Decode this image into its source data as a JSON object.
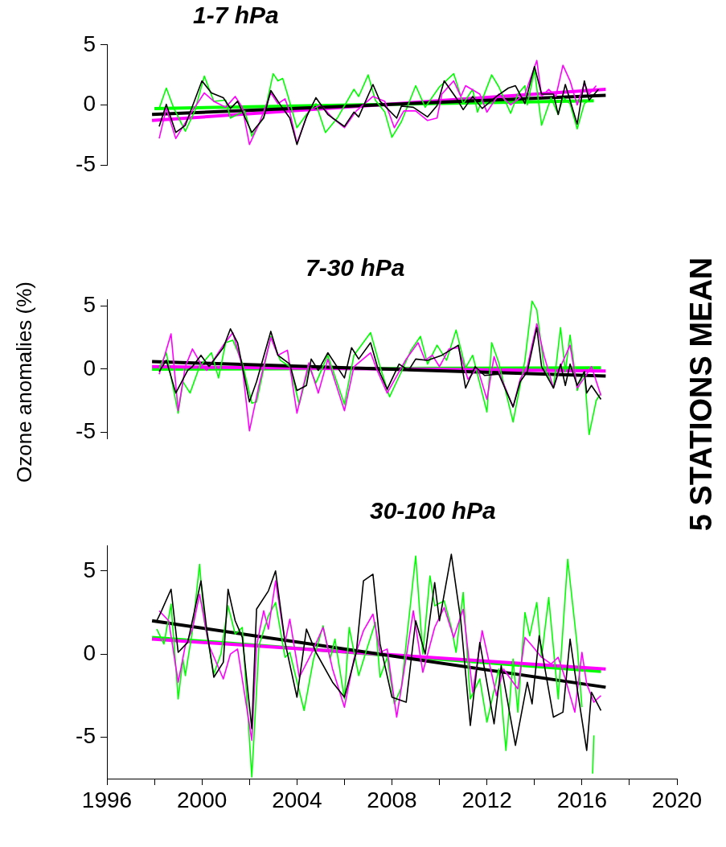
{
  "chart_data": [
    {
      "type": "line",
      "title": "1-7 hPa",
      "xlim": [
        1996,
        2020
      ],
      "ylim": [
        -5,
        5
      ],
      "yticks": [
        -5,
        0,
        5
      ],
      "tick_labels": "y",
      "grid": false,
      "legend": false,
      "marker": "none",
      "line_style": "solid",
      "series": [
        {
          "color": "#000000",
          "x": [
            1998.2,
            1998.5,
            1998.9,
            1999.3,
            2000.0,
            2000.4,
            2000.9,
            2001.2,
            2001.5,
            2002.1,
            2002.6,
            2002.9,
            2003.3,
            2003.7,
            2004.0,
            2004.4,
            2004.8,
            2005.3,
            2006.0,
            2006.4,
            2006.6,
            2007.2,
            2007.5,
            2008.2,
            2008.4,
            2008.9,
            2009.5,
            2009.9,
            2010.2,
            2010.7,
            2011.0,
            2011.4,
            2011.8,
            2012.4,
            2012.9,
            2013.2,
            2013.6,
            2014.0,
            2014.3,
            2014.8,
            2015.0,
            2015.3,
            2015.8,
            2016.1,
            2016.3,
            2016.7
          ],
          "values": [
            -1.8,
            0.05,
            -2.3,
            -1.7,
            2.0,
            1.0,
            0.6,
            -0.3,
            0.3,
            -2.3,
            -1.1,
            1.2,
            0,
            -1.1,
            -3.3,
            -1.0,
            0.6,
            -0.8,
            -1.8,
            -0.6,
            -1.0,
            1.7,
            0.3,
            -1.1,
            -0.1,
            -0.2,
            -1.0,
            -0.05,
            2.0,
            0.6,
            -0.4,
            0.7,
            -0.3,
            0.7,
            1.4,
            1.6,
            0.1,
            3.2,
            0.9,
            0.9,
            -0.8,
            1.7,
            -1.6,
            2.0,
            0.4,
            1.3
          ]
        },
        {
          "color": "#ff00ff",
          "x": [
            1998.2,
            1998.5,
            1998.9,
            1999.6,
            2000.1,
            2000.5,
            2001.0,
            2001.4,
            2001.7,
            2002.0,
            2002.4,
            2002.9,
            2003.2,
            2003.5,
            2003.7,
            2004.0,
            2004.5,
            2005.0,
            2005.5,
            2006.0,
            2006.5,
            2007.2,
            2007.7,
            2008.1,
            2008.5,
            2009.0,
            2009.5,
            2009.9,
            2010.1,
            2010.6,
            2010.9,
            2011.1,
            2011.7,
            2012.0,
            2012.5,
            2013.0,
            2013.6,
            2014.1,
            2014.3,
            2014.6,
            2014.9,
            2015.2,
            2015.5,
            2015.8,
            2016.1,
            2016.3,
            2016.6
          ],
          "values": [
            -2.8,
            -0.3,
            -2.8,
            -0.5,
            1.0,
            0.3,
            -0.2,
            0.7,
            -0.2,
            -3.3,
            -1.6,
            1.0,
            0.1,
            0.5,
            -0.6,
            -3.2,
            -0.5,
            0,
            -1.1,
            -1.9,
            -0.5,
            0.7,
            0.3,
            -1.9,
            -0.5,
            -0.5,
            -1.3,
            -1.1,
            0.9,
            2.0,
            0.7,
            1.6,
            0.9,
            -0.6,
            0.9,
            0,
            0.9,
            3.7,
            0.7,
            1.3,
            0.7,
            3.3,
            2.0,
            0,
            1.8,
            0.9,
            1.6
          ]
        },
        {
          "color": "#00ff00",
          "x": [
            1998.2,
            1998.5,
            1998.8,
            1999.3,
            1999.7,
            2000.1,
            2000.5,
            2001.0,
            2001.2,
            2001.8,
            2002.1,
            2002.6,
            2003.0,
            2003.2,
            2003.4,
            2003.6,
            2004.0,
            2004.4,
            2004.8,
            2005.2,
            2005.7,
            2006.4,
            2006.6,
            2007.0,
            2007.3,
            2007.7,
            2008.0,
            2008.4,
            2009.0,
            2009.4,
            2010.0,
            2010.6,
            2011.0,
            2011.4,
            2011.6,
            2012.2,
            2012.5,
            2013.0,
            2013.3,
            2013.6,
            2013.7,
            2014.0,
            2014.3,
            2014.7,
            2015.0,
            2015.2,
            2015.5,
            2015.8,
            2016.1,
            2016.3
          ],
          "values": [
            -0.3,
            1.4,
            -0.2,
            -2.2,
            -0.5,
            2.4,
            0.3,
            0.4,
            -1.1,
            -0.5,
            -2.6,
            -1.0,
            2.6,
            2.0,
            2.2,
            0.9,
            -1.9,
            -0.8,
            0.1,
            -2.3,
            -1.1,
            1.3,
            0.7,
            2.5,
            0.4,
            -0.6,
            -2.7,
            -1.4,
            1.6,
            -0.2,
            1.5,
            2.6,
            0.1,
            1.3,
            -0.6,
            2.5,
            1.5,
            -0.7,
            0.9,
            1.6,
            0,
            2.9,
            -1.7,
            0.6,
            -0.8,
            0.6,
            0.1,
            -2.0,
            0.1,
            0.4
          ]
        },
        {
          "color": "#000000",
          "x": [
            1997.9,
            2017.0
          ],
          "values": [
            -0.8,
            0.8
          ]
        },
        {
          "color": "#ff00ff",
          "x": [
            1997.9,
            2017.0
          ],
          "values": [
            -1.3,
            1.3
          ]
        },
        {
          "color": "#00ff00",
          "x": [
            1998.0,
            2016.5
          ],
          "values": [
            -0.3,
            0.35
          ]
        }
      ]
    },
    {
      "type": "line",
      "title": "7-30 hPa",
      "ylabel": "Ozone anomalies (%)",
      "annotations": [
        "5 STATIONS MEAN"
      ],
      "xlim": [
        1996,
        2020
      ],
      "ylim": [
        -5.5,
        5.5
      ],
      "yticks": [
        -5,
        0,
        5
      ],
      "tick_labels": "y",
      "grid": false,
      "legend": false,
      "marker": "none",
      "line_style": "solid",
      "series": [
        {
          "color": "#000000",
          "x": [
            1998.2,
            1998.5,
            1998.9,
            1999.4,
            1999.6,
            1999.96,
            2000.3,
            2000.9,
            2001.2,
            2001.5,
            2002.0,
            2002.3,
            2002.9,
            2003.2,
            2003.7,
            2004.0,
            2004.4,
            2004.6,
            2004.9,
            2005.3,
            2006.0,
            2006.3,
            2006.6,
            2007.1,
            2007.4,
            2007.8,
            2008.3,
            2008.7,
            2009.0,
            2009.5,
            2010.1,
            2010.8,
            2011.1,
            2011.5,
            2011.9,
            2012.5,
            2013.1,
            2013.4,
            2013.7,
            2014.1,
            2014.3,
            2014.8,
            2015.1,
            2015.3,
            2015.5,
            2015.8,
            2016.1,
            2016.2,
            2016.4,
            2016.8
          ],
          "values": [
            -0.2,
            0.7,
            -1.9,
            -0.1,
            0.2,
            1.1,
            0.2,
            1.7,
            3.2,
            2.1,
            -2.6,
            -1.0,
            3.0,
            1.1,
            0.4,
            -1.7,
            -1.3,
            0.8,
            -0.1,
            1.3,
            -0.7,
            1.7,
            0.8,
            2.1,
            0.1,
            -1.6,
            0.4,
            -0.1,
            0.8,
            0.7,
            1.1,
            1.9,
            -1.5,
            0.2,
            -0.5,
            -0.4,
            -3.0,
            -1.0,
            -0.2,
            3.3,
            0.2,
            -1.5,
            0.4,
            -1.3,
            0.4,
            -1.3,
            -0.2,
            -1.9,
            -1.3,
            -2.4
          ]
        },
        {
          "color": "#ff00ff",
          "x": [
            1998.2,
            1998.7,
            1999.0,
            1999.3,
            1999.6,
            1999.96,
            2000.2,
            2000.9,
            2001.3,
            2001.7,
            2002.0,
            2002.4,
            2002.9,
            2003.2,
            2003.6,
            2004.0,
            2004.5,
            2004.9,
            2005.3,
            2006.0,
            2006.4,
            2007.1,
            2007.4,
            2007.8,
            2008.6,
            2009.1,
            2009.4,
            2009.7,
            2010.0,
            2010.4,
            2010.8,
            2011.2,
            2011.6,
            2012.0,
            2012.3,
            2012.6,
            2013.1,
            2013.4,
            2013.7,
            2014.1,
            2014.4,
            2014.8,
            2015.1,
            2015.5,
            2015.8,
            2016.1,
            2016.4,
            2016.8
          ],
          "values": [
            -0.4,
            2.8,
            -3.3,
            0.2,
            1.6,
            0.4,
            -0.1,
            1.9,
            2.9,
            0.2,
            -4.9,
            -1.3,
            2.5,
            1.1,
            1.5,
            -3.5,
            0.5,
            -1.9,
            0.8,
            -3.3,
            0.2,
            1.3,
            -0.2,
            -1.9,
            0.8,
            2.1,
            0.7,
            1.1,
            0.2,
            1.6,
            1.7,
            -0.8,
            0.1,
            -2.4,
            1.0,
            -0.7,
            -3.0,
            -0.8,
            0.2,
            3.6,
            1.1,
            -1.5,
            0.2,
            1.9,
            -1.5,
            -0.7,
            0.2,
            -2.1
          ]
        },
        {
          "color": "#00ff00",
          "x": [
            1998.2,
            1998.5,
            1999.0,
            1999.2,
            1999.5,
            1999.9,
            2000.4,
            2000.7,
            2001.0,
            2001.3,
            2001.7,
            2002.1,
            2002.3,
            2002.9,
            2003.3,
            2003.7,
            2004.1,
            2004.5,
            2004.8,
            2005.3,
            2006.0,
            2006.4,
            2007.1,
            2007.5,
            2007.9,
            2008.4,
            2008.8,
            2009.2,
            2009.5,
            2009.9,
            2010.3,
            2010.7,
            2011.1,
            2011.4,
            2012.0,
            2012.2,
            2012.5,
            2013.1,
            2013.6,
            2013.9,
            2014.1,
            2014.4,
            2014.8,
            2015.1,
            2015.3,
            2015.5,
            2015.8,
            2016.1,
            2016.3,
            2016.6,
            2016.8
          ],
          "values": [
            0.1,
            1.3,
            -3.5,
            -1.0,
            -1.9,
            0.2,
            1.3,
            -0.7,
            2.1,
            2.3,
            0.5,
            -2.7,
            -2.6,
            2.6,
            0.7,
            0.2,
            -2.8,
            0.2,
            -1.1,
            1.1,
            -2.8,
            1.1,
            2.9,
            0.2,
            -2.2,
            -0.2,
            1.5,
            2.6,
            0.4,
            1.9,
            0.7,
            3.1,
            0.1,
            1.1,
            -3.4,
            2.1,
            0.5,
            -4.2,
            0.7,
            5.4,
            4.7,
            0.2,
            -1.5,
            3.3,
            -0.2,
            2.7,
            -1.7,
            -0.2,
            -5.2,
            -2.5,
            -1.9
          ]
        },
        {
          "color": "#000000",
          "x": [
            1997.9,
            2017.0
          ],
          "values": [
            0.6,
            -0.55
          ]
        },
        {
          "color": "#ff00ff",
          "x": [
            1997.9,
            2017.0
          ],
          "values": [
            0.2,
            -0.15
          ]
        },
        {
          "color": "#00ff00",
          "x": [
            1997.9,
            2016.8
          ],
          "values": [
            0,
            0.1
          ]
        }
      ]
    },
    {
      "type": "line",
      "title": "30-100 hPa",
      "xlim": [
        1996,
        2020
      ],
      "xticks": [
        1996,
        {
          "value": 1998,
          "label": null
        },
        2000,
        {
          "value": 2002,
          "label": null
        },
        2004,
        {
          "value": 2006,
          "label": null
        },
        2008,
        {
          "value": 2010,
          "label": null
        },
        2012,
        {
          "value": 2014,
          "label": null
        },
        2016,
        {
          "value": 2018,
          "label": null
        },
        2020
      ],
      "ylim": [
        -7.5,
        6.5
      ],
      "yticks": [
        -5,
        0,
        5
      ],
      "grid": false,
      "legend": false,
      "marker": "none",
      "line_style": "solid",
      "series": [
        {
          "color": "#000000",
          "x": [
            1998.1,
            1998.3,
            1998.7,
            1999.0,
            1999.4,
            1999.96,
            2000.2,
            2000.5,
            2000.9,
            2001.1,
            2001.4,
            2001.7,
            2002.1,
            2002.3,
            2002.8,
            2003.1,
            2003.5,
            2004.0,
            2004.4,
            2004.8,
            2005.5,
            2006.0,
            2006.5,
            2006.8,
            2007.2,
            2007.5,
            2008.0,
            2008.6,
            2009.0,
            2009.4,
            2009.8,
            2010.0,
            2010.5,
            2010.9,
            2011.3,
            2011.7,
            2012.3,
            2012.6,
            2013.2,
            2013.7,
            2013.9,
            2014.2,
            2014.8,
            2015.2,
            2015.5,
            2015.8,
            2016.2,
            2016.4,
            2016.8
          ],
          "values": [
            2.0,
            2.6,
            3.9,
            0.1,
            0.7,
            4.4,
            1.5,
            -1.4,
            -0.5,
            3.9,
            2.0,
            1.0,
            -4.5,
            2.7,
            3.8,
            5.0,
            0.7,
            -2.6,
            1.5,
            0.1,
            -1.7,
            -2.6,
            0.1,
            4.4,
            4.8,
            0.6,
            -2.6,
            -2.9,
            2.0,
            0,
            4.3,
            2.0,
            6.0,
            2.0,
            -4.3,
            0.7,
            -4.2,
            -0.7,
            -5.5,
            -1.7,
            -3.0,
            1.1,
            -3.8,
            -3.5,
            0.9,
            -2.1,
            -5.8,
            -2.3,
            -3.4
          ]
        },
        {
          "color": "#ff00ff",
          "x": [
            1998.2,
            1998.6,
            1999.0,
            1999.3,
            1999.6,
            1999.9,
            2000.3,
            2000.9,
            2001.2,
            2001.5,
            2002.1,
            2002.3,
            2002.6,
            2002.8,
            2003.1,
            2003.5,
            2003.7,
            2004.1,
            2004.6,
            2005.1,
            2005.5,
            2006.0,
            2006.4,
            2006.8,
            2007.2,
            2007.5,
            2007.8,
            2008.2,
            2008.5,
            2008.9,
            2009.3,
            2009.8,
            2010.2,
            2010.6,
            2011.0,
            2011.4,
            2011.8,
            2012.4,
            2012.7,
            2013.3,
            2013.6,
            2013.9,
            2014.3,
            2014.7,
            2015.0,
            2015.3,
            2015.7,
            2016.0,
            2016.2,
            2016.5,
            2016.8
          ],
          "values": [
            2.6,
            2.0,
            -1.7,
            0.5,
            1.5,
            3.6,
            0.5,
            -1.5,
            0,
            0.3,
            -5.2,
            0.5,
            2.6,
            1.5,
            4.4,
            0.7,
            2.1,
            -1.4,
            0,
            1.6,
            -0.9,
            -3.2,
            -0.3,
            1.4,
            2.4,
            0.1,
            0.3,
            -3.8,
            -1.1,
            2.6,
            -1.1,
            1.6,
            2.8,
            1.0,
            2.7,
            -2.3,
            1.4,
            -2.5,
            -0.9,
            -2.1,
            1.0,
            0.5,
            -0.2,
            -0.6,
            -0.2,
            -1.5,
            -3.5,
            0.1,
            -1.8,
            -2.9,
            -2.5
          ]
        },
        {
          "color": "#00ff00",
          "x": [
            1998.1,
            1998.4,
            1998.7,
            1999.0,
            1999.2,
            1999.3,
            1999.6,
            1999.9,
            2000.1,
            2000.5,
            2000.8,
            2001.1,
            2001.4,
            2001.7,
            2002.1,
            2002.4,
            2002.8,
            2003.1,
            2003.5,
            2003.7,
            2004.3,
            2004.7,
            2005.1,
            2005.4,
            2005.6,
            2006.0,
            2006.2,
            2006.6,
            2006.9,
            2007.3,
            2007.5,
            2007.8,
            2008.1,
            2008.4,
            2009.0,
            2009.3,
            2009.6,
            2009.8,
            2010.2,
            2010.5,
            2010.7,
            2011.0,
            2011.3,
            2011.7,
            2012.0,
            2012.5,
            2012.8,
            2013.1,
            2013.3,
            2013.6,
            2013.8,
            2014.1,
            2014.3,
            2014.6,
            2015.0,
            2015.4,
            2015.8,
            2016.0,
            2016.2,
            2016.4,
            2016.45,
            2016.5
          ],
          "values": [
            1.5,
            0.6,
            3.0,
            -2.7,
            -0.3,
            -1.3,
            1.4,
            5.4,
            2.0,
            -1.2,
            0,
            2.9,
            1.2,
            1.6,
            -7.4,
            0.5,
            2.3,
            3.1,
            -0.2,
            0.1,
            -3.4,
            -0.3,
            1.7,
            -0.3,
            0.9,
            -2.7,
            1.6,
            -1.3,
            0.1,
            1.9,
            -1.4,
            -0.2,
            -3.0,
            -2.0,
            5.9,
            0,
            4.7,
            2.9,
            3.2,
            1.6,
            0.1,
            3.7,
            -2.7,
            -1.5,
            -4.1,
            -0.9,
            -5.8,
            -0.3,
            -3.5,
            2.5,
            1.1,
            3.1,
            -0.2,
            3.4,
            -2.7,
            5.7,
            0.5,
            -3.2,
            null,
            null,
            -7.2,
            -4.9
          ]
        },
        {
          "color": "#000000",
          "x": [
            1997.9,
            2017.0
          ],
          "values": [
            2.0,
            -2.0
          ]
        },
        {
          "color": "#ff00ff",
          "x": [
            1997.9,
            2017.0
          ],
          "values": [
            0.9,
            -0.9
          ]
        },
        {
          "color": "#00ff00",
          "x": [
            1997.9,
            2016.8
          ],
          "values": [
            1.0,
            -1.05
          ]
        }
      ]
    }
  ]
}
